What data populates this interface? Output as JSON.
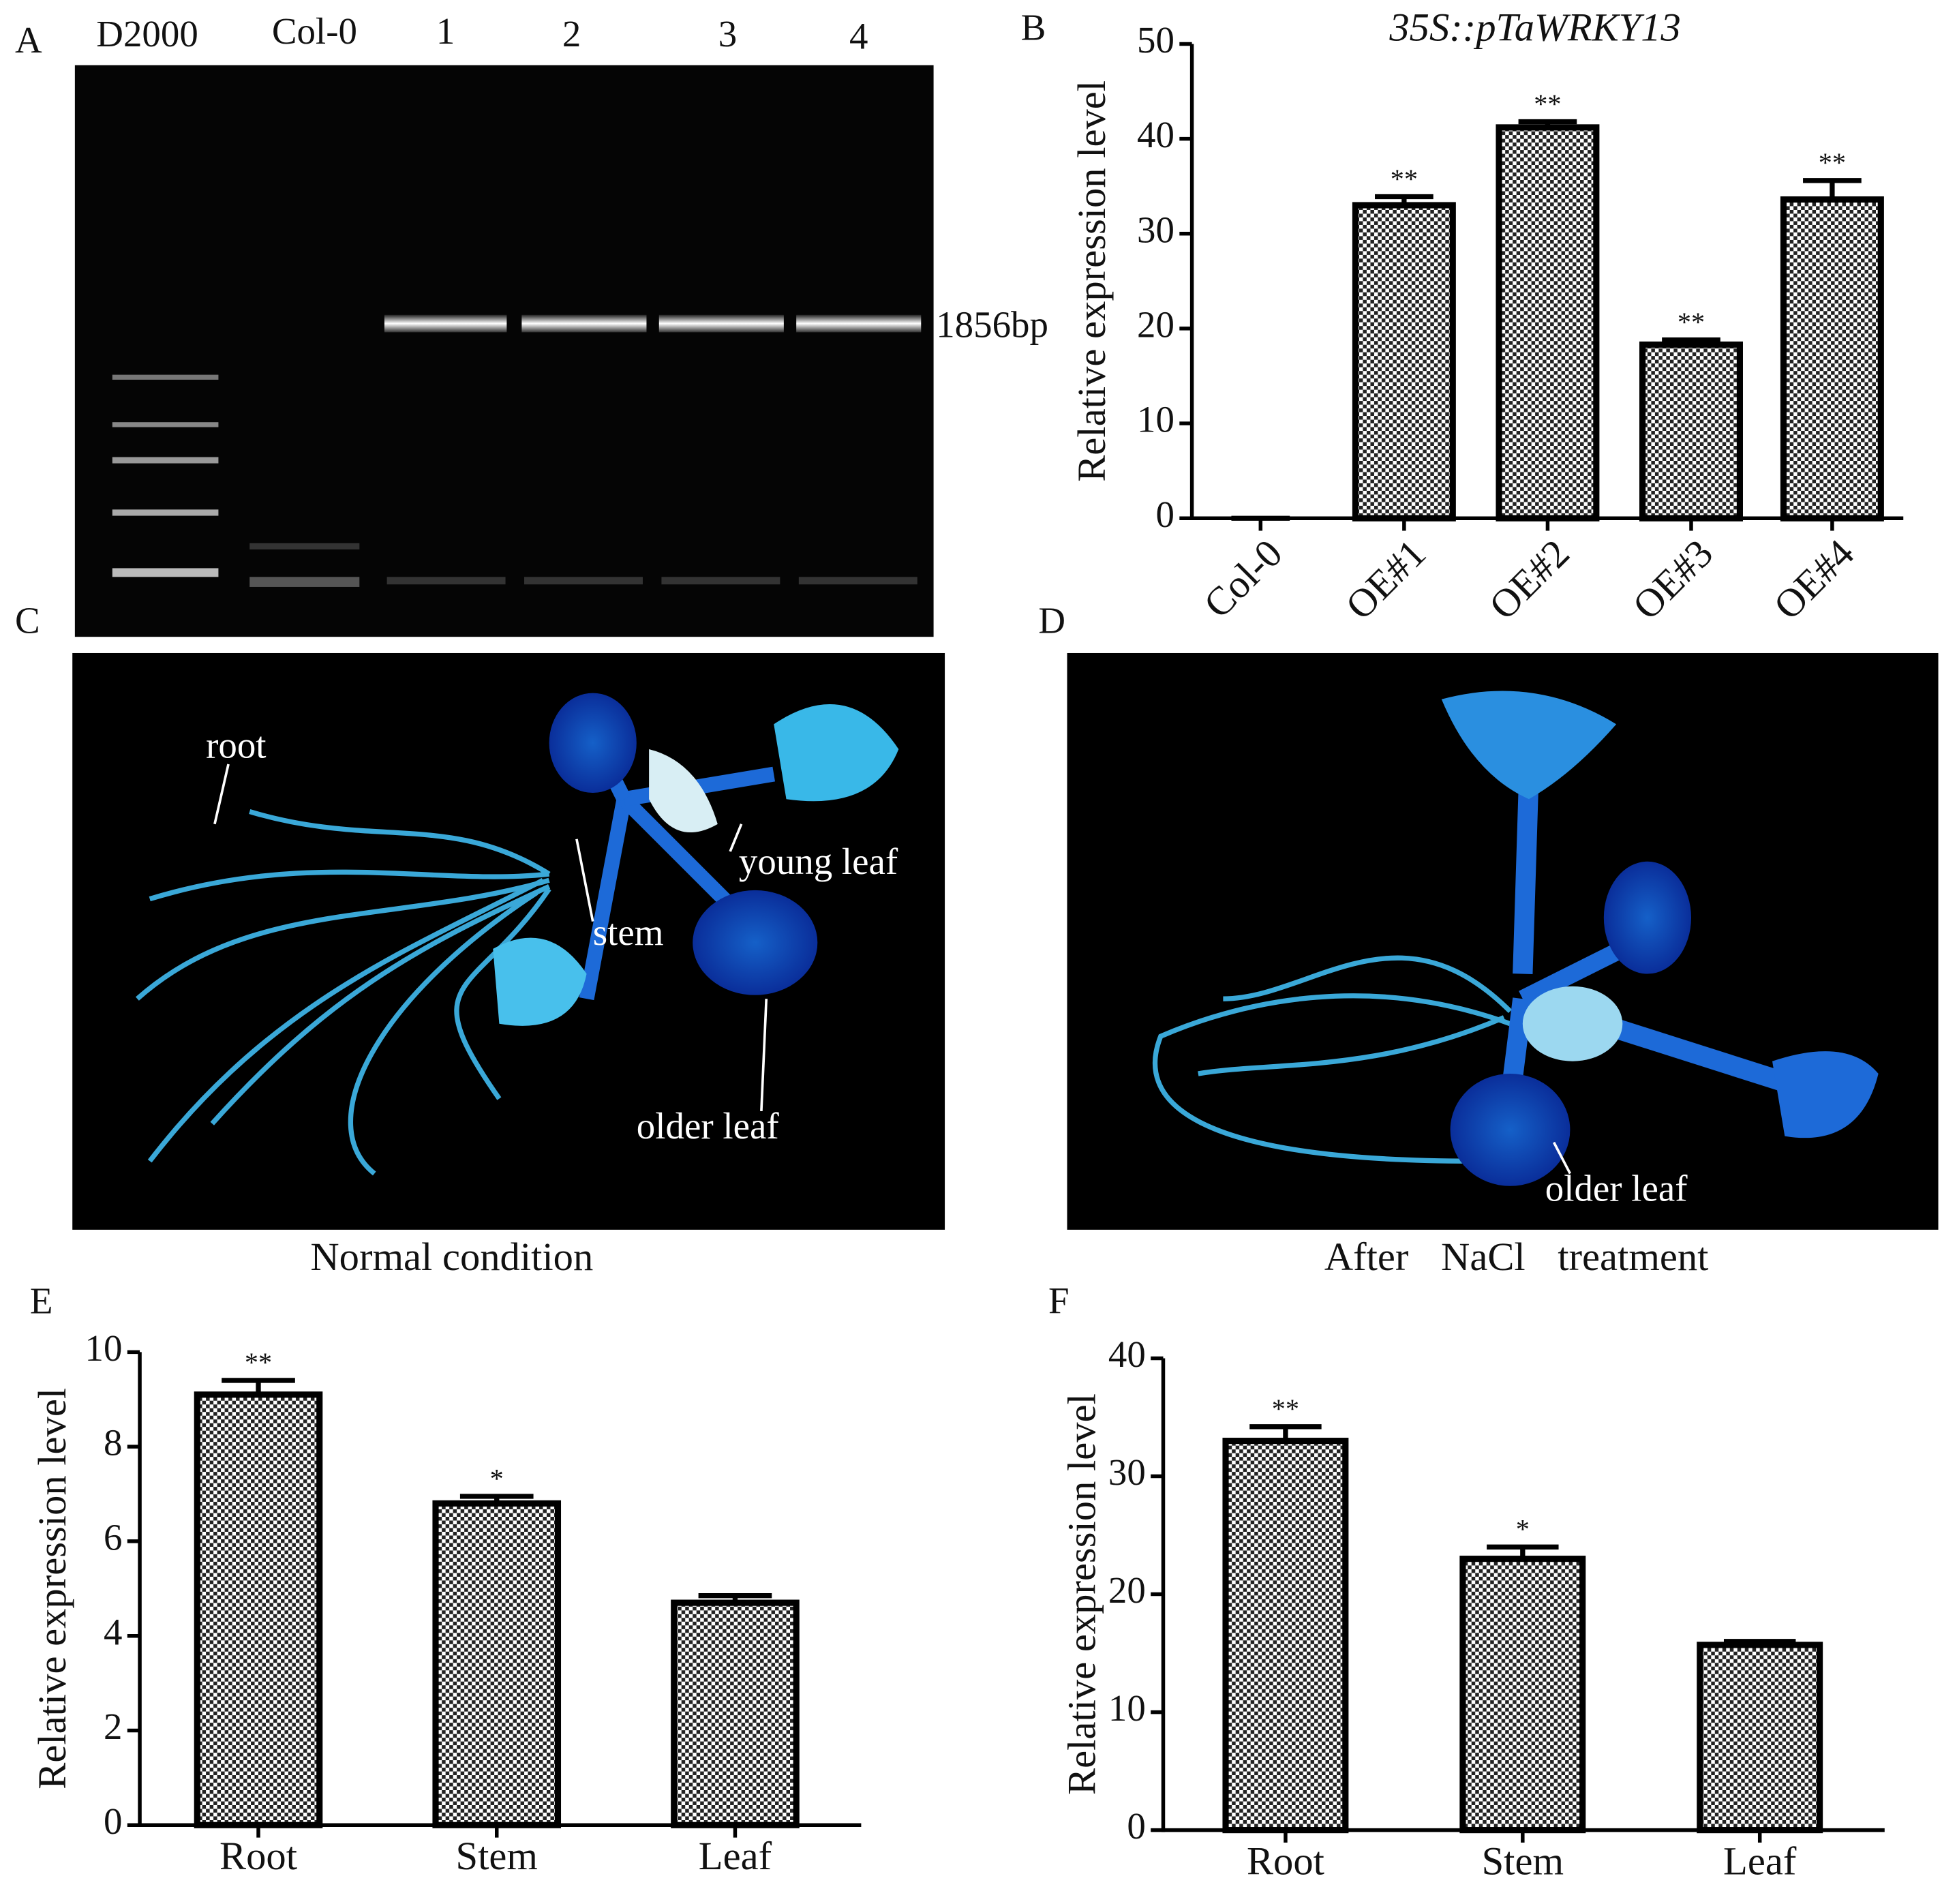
{
  "figure": {
    "panel_labels": [
      "A",
      "B",
      "C",
      "D",
      "E",
      "F"
    ],
    "gel": {
      "lanes": [
        "D2000",
        "Col-0",
        "1",
        "2",
        "3",
        "4"
      ],
      "band_label": "1856bp"
    },
    "photo_c": {
      "labels": [
        "root",
        "young leaf",
        "stem",
        "older leaf"
      ],
      "caption": "Normal condition"
    },
    "photo_d": {
      "labels": [
        "older leaf"
      ],
      "caption": "After NaCl treatment"
    }
  },
  "chart_data": [
    {
      "type": "bar",
      "title": "35S::pTaWRKY13",
      "y_label": "Relative expression level",
      "categories": [
        "Col-0",
        "OE#1",
        "OE#2",
        "OE#3",
        "OE#4"
      ],
      "values": [
        0,
        33,
        41.2,
        18.3,
        33.6
      ],
      "errors": [
        0,
        0.9,
        0.6,
        0.5,
        2.0
      ],
      "annotations": [
        null,
        "**",
        "**",
        "**",
        "**"
      ],
      "ylim": [
        0,
        50
      ],
      "yticks": [
        0,
        10,
        20,
        30,
        40,
        50
      ],
      "rotate_categories": true
    },
    {
      "type": "bar",
      "y_label": "Relative expression level",
      "categories": [
        "Root",
        "Stem",
        "Leaf"
      ],
      "values": [
        9.1,
        6.8,
        4.7
      ],
      "errors": [
        0.3,
        0.15,
        0.15
      ],
      "annotations": [
        "**",
        "*",
        null
      ],
      "ylim": [
        0,
        10
      ],
      "yticks": [
        0,
        2,
        4,
        6,
        8,
        10
      ],
      "rotate_categories": false
    },
    {
      "type": "bar",
      "y_label": "Relative expression level",
      "categories": [
        "Root",
        "Stem",
        "Leaf"
      ],
      "values": [
        33,
        23,
        15.7
      ],
      "errors": [
        1.2,
        1.0,
        0.3
      ],
      "annotations": [
        "**",
        "*",
        null
      ],
      "ylim": [
        0,
        40
      ],
      "yticks": [
        0,
        10,
        20,
        30,
        40
      ],
      "rotate_categories": false
    }
  ]
}
